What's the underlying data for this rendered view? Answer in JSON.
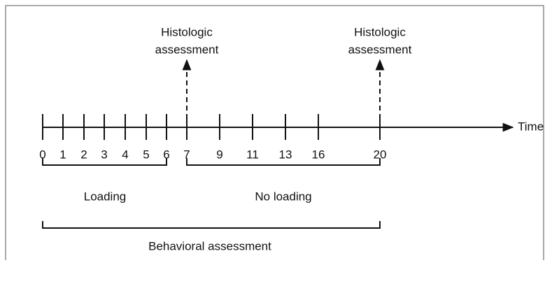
{
  "timeline": {
    "axis_label": "Time (d)",
    "days": [
      0,
      1,
      2,
      3,
      4,
      5,
      6,
      7,
      9,
      11,
      13,
      16,
      20
    ]
  },
  "annotations": [
    {
      "lines": [
        "Histologic",
        "assessment"
      ]
    },
    {
      "lines": [
        "Histologic",
        "assessment"
      ]
    }
  ],
  "periods": [
    {
      "label": "Loading"
    },
    {
      "label": "No loading"
    },
    {
      "label": "Behavioral assessment"
    }
  ]
}
